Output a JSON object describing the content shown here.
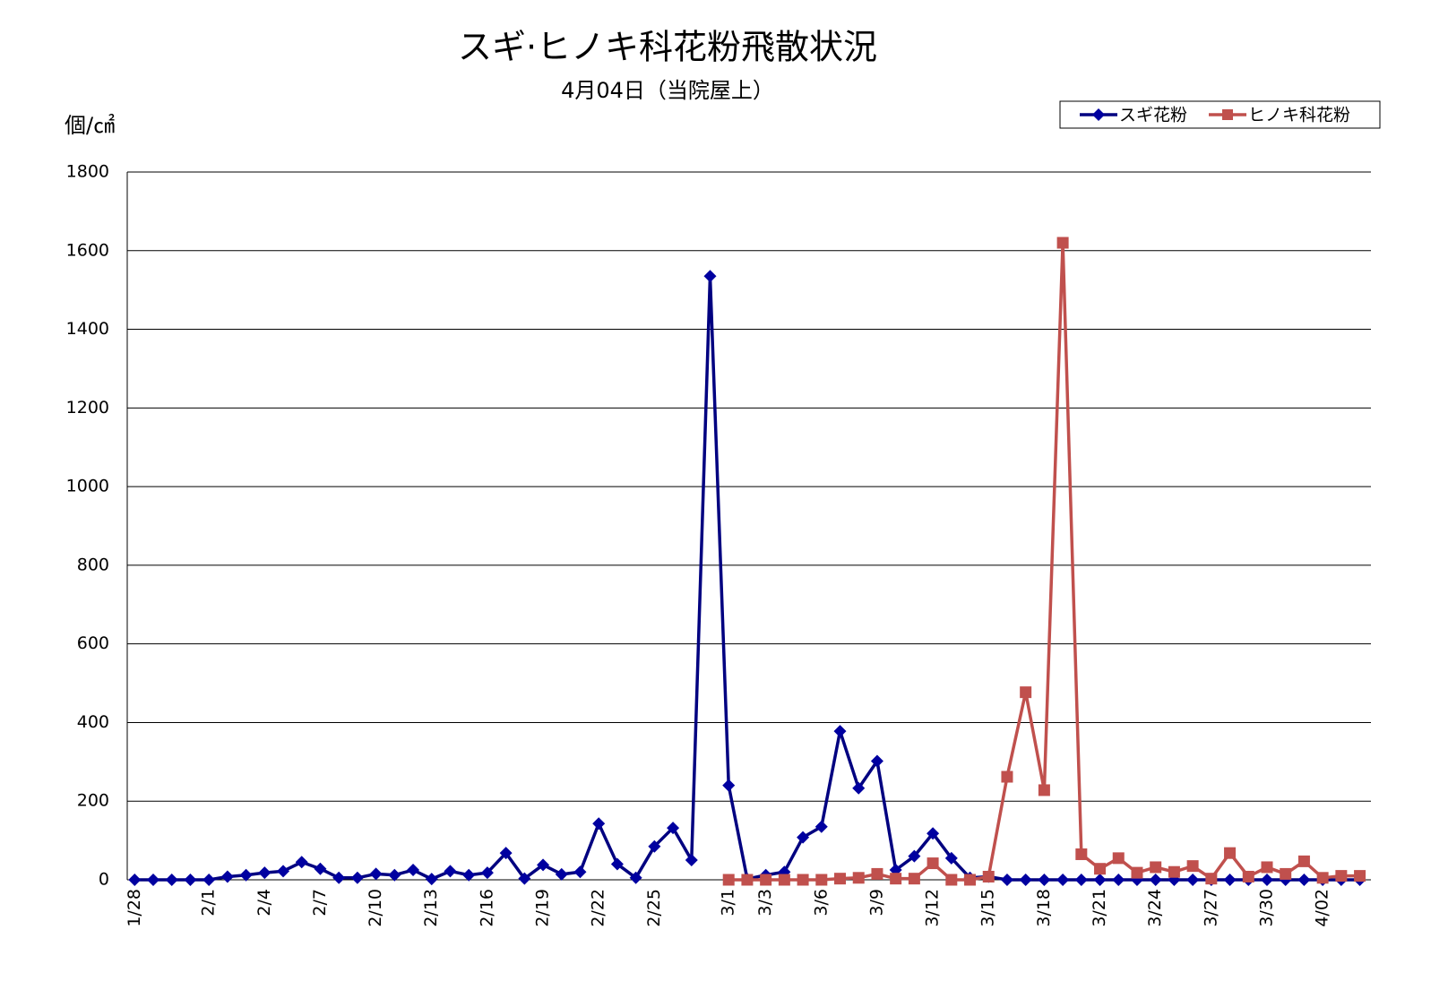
{
  "chart_data": {
    "type": "line",
    "title": "スギ·ヒノキ科花粉飛散状況",
    "subtitle": "4月04日（当院屋上）",
    "y_label": "個/㎠",
    "categories": [
      "1/28",
      null,
      null,
      null,
      "2/1",
      null,
      null,
      "2/4",
      null,
      null,
      "2/7",
      null,
      null,
      "2/10",
      null,
      null,
      "2/13",
      null,
      null,
      "2/16",
      null,
      null,
      "2/19",
      null,
      null,
      "2/22",
      null,
      null,
      "2/25",
      null,
      null,
      null,
      "3/1",
      null,
      "3/3",
      null,
      null,
      "3/6",
      null,
      null,
      "3/9",
      null,
      null,
      "3/12",
      null,
      null,
      "3/15",
      null,
      null,
      "3/18",
      null,
      null,
      "3/21",
      null,
      null,
      "3/24",
      null,
      null,
      "3/27",
      null,
      null,
      "3/30",
      null,
      null,
      "4/02",
      null,
      null
    ],
    "series": [
      {
        "name": "スギ花粉",
        "color": "#000080",
        "marker": "diamond",
        "marker_color": "#0000a0",
        "values": [
          0,
          0,
          0,
          0,
          0,
          8,
          12,
          18,
          22,
          45,
          28,
          5,
          5,
          15,
          12,
          25,
          2,
          22,
          12,
          18,
          68,
          3,
          38,
          14,
          20,
          143,
          40,
          5,
          85,
          132,
          50,
          1535,
          240,
          2,
          12,
          20,
          108,
          135,
          378,
          233,
          302,
          25,
          60,
          118,
          55,
          5,
          8,
          0,
          0,
          0,
          0,
          0,
          0,
          0,
          0,
          0,
          0,
          0,
          0,
          0,
          0,
          0,
          0,
          0,
          0,
          0,
          0
        ]
      },
      {
        "name": "ヒノキ科花粉",
        "color": "#c0504d",
        "marker": "square",
        "marker_color": "#c0504d",
        "values": [
          null,
          null,
          null,
          null,
          null,
          null,
          null,
          null,
          null,
          null,
          null,
          null,
          null,
          null,
          null,
          null,
          null,
          null,
          null,
          null,
          null,
          null,
          null,
          null,
          null,
          null,
          null,
          null,
          null,
          null,
          null,
          null,
          0,
          0,
          0,
          0,
          0,
          0,
          3,
          5,
          15,
          3,
          3,
          42,
          0,
          0,
          8,
          262,
          477,
          228,
          1620,
          65,
          28,
          55,
          18,
          32,
          20,
          35,
          3,
          68,
          8,
          32,
          15,
          47,
          5,
          10,
          10
        ]
      }
    ],
    "ylim": [
      0,
      1800
    ],
    "yticks": [
      0,
      200,
      400,
      600,
      800,
      1000,
      1200,
      1400,
      1600,
      1800
    ],
    "grid": true,
    "legend": "top-right"
  }
}
